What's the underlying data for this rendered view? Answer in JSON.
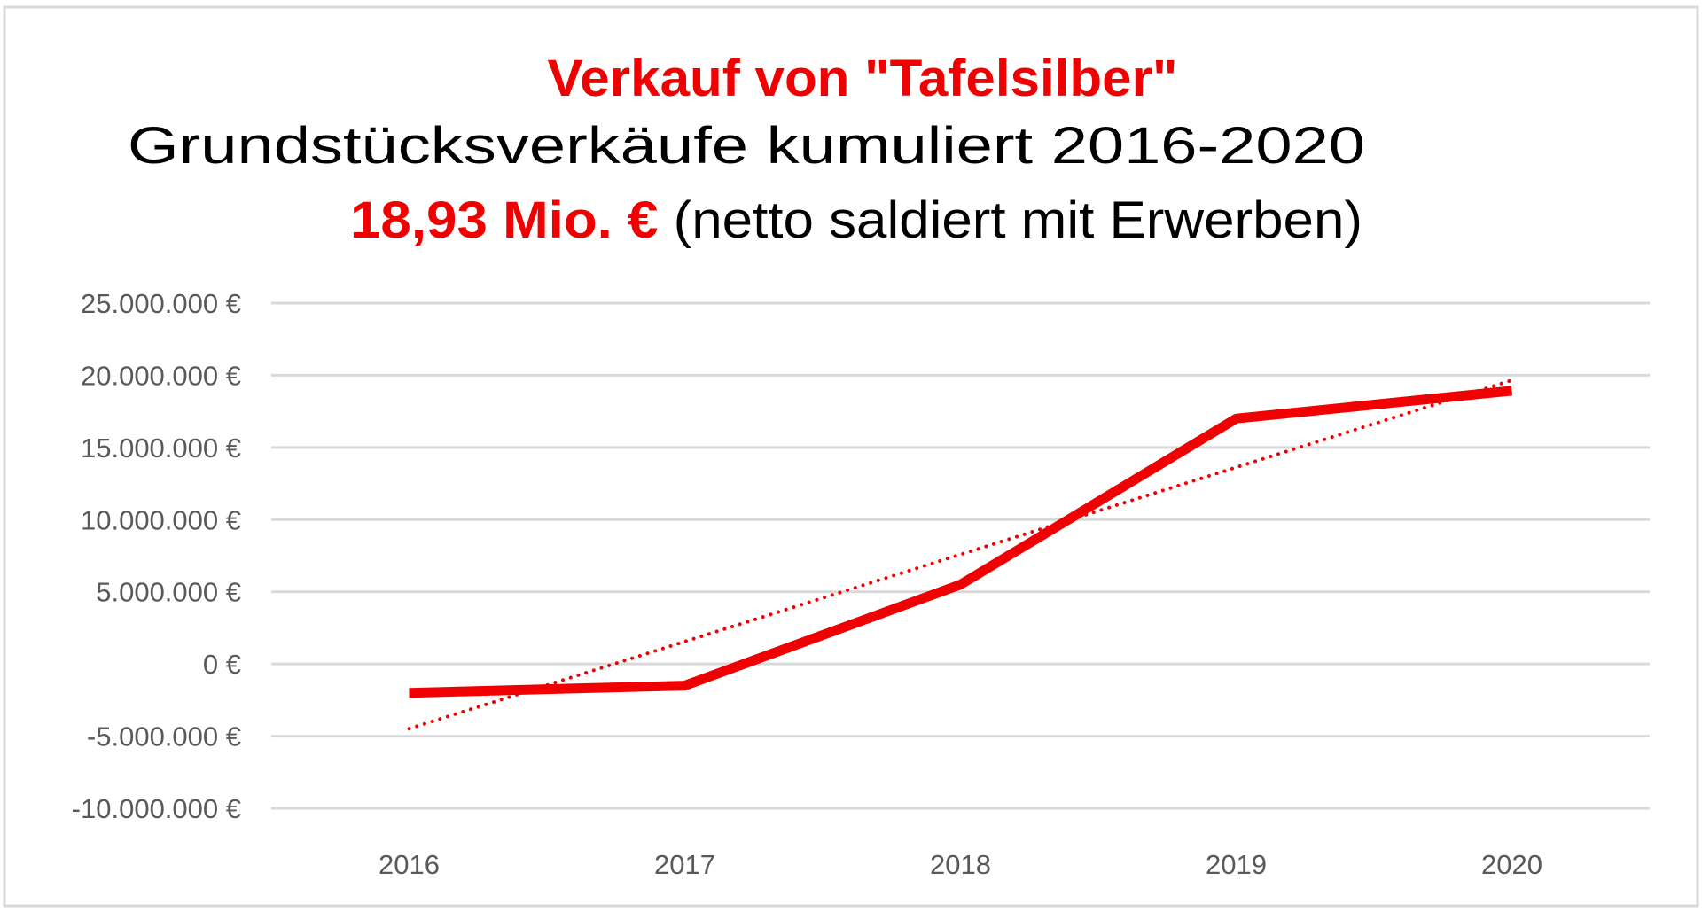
{
  "chart_data": {
    "type": "line",
    "title": "Verkauf von \"Tafelsilber\"",
    "subtitle": "Grundstücksverkäufe kumuliert 2016-2020",
    "subtitle2_highlight": "18,93 Mio. €",
    "subtitle2_rest": " (netto saldiert mit Erwerben)",
    "xlabel": "",
    "ylabel": "",
    "categories": [
      "2016",
      "2017",
      "2018",
      "2019",
      "2020"
    ],
    "series": [
      {
        "values": [
          -2000000,
          -1500000,
          5500000,
          17000000,
          18930000
        ],
        "color": "#f00000",
        "style": "solid"
      }
    ],
    "trendline": {
      "type": "linear",
      "color": "#f00000",
      "style": "dotted"
    },
    "ylim": [
      -10000000,
      25000000
    ],
    "yticks": [
      25000000,
      20000000,
      15000000,
      10000000,
      5000000,
      0,
      -5000000,
      -10000000
    ],
    "ytick_labels": [
      "25.000.000 €",
      "20.000.000 €",
      "15.000.000 €",
      "10.000.000 €",
      "5.000.000 €",
      "0 €",
      "-5.000.000 €",
      "-10.000.000 €"
    ],
    "grid": true,
    "legend": "none",
    "colors": {
      "title": "#f00000",
      "text": "#000000",
      "axis_text": "#595959",
      "grid": "#d9d9d9"
    }
  }
}
